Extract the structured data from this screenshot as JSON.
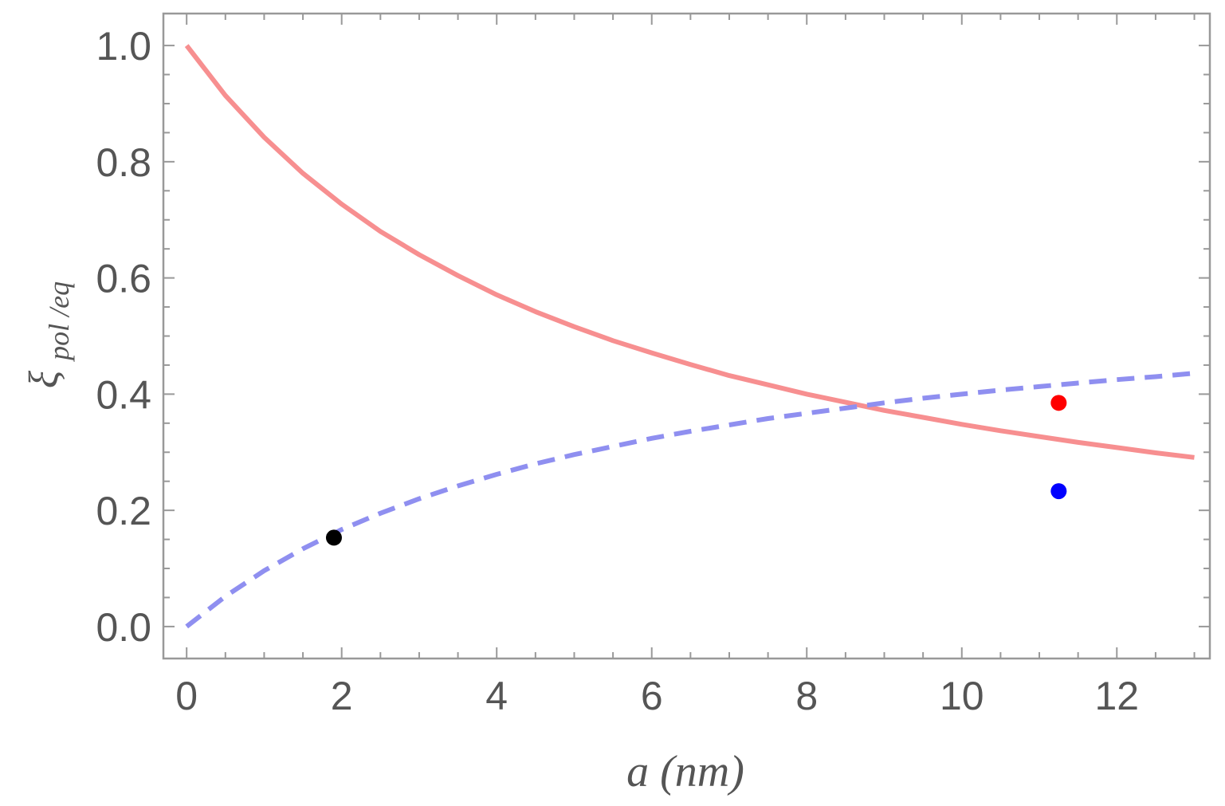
{
  "chart_data": {
    "type": "line",
    "xlabel_var": "a",
    "xlabel_unit": "(nm)",
    "ylabel_var": "ξ",
    "ylabel_sub": "pol /eq",
    "xlim": [
      -0.3,
      13.2
    ],
    "ylim": [
      -0.055,
      1.055
    ],
    "x_ticks": [
      0,
      2,
      4,
      6,
      8,
      10,
      12
    ],
    "x_tick_labels": [
      "0",
      "2",
      "4",
      "6",
      "8",
      "10",
      "12"
    ],
    "y_ticks": [
      0.0,
      0.2,
      0.4,
      0.6,
      0.8,
      1.0
    ],
    "y_tick_labels": [
      "0.0",
      "0.2",
      "0.4",
      "0.6",
      "0.8",
      "1.0"
    ],
    "grid": false,
    "series": [
      {
        "style": "solid",
        "color": "#f78f90",
        "x": [
          0,
          0.5,
          1,
          1.5,
          2,
          2.5,
          3,
          3.5,
          4,
          4.5,
          5,
          5.5,
          6,
          6.5,
          7,
          7.5,
          8,
          8.5,
          9,
          9.5,
          10,
          10.5,
          11,
          11.5,
          12,
          12.5,
          13
        ],
        "y": [
          1.0,
          0.914,
          0.842,
          0.78,
          0.727,
          0.68,
          0.64,
          0.604,
          0.571,
          0.542,
          0.516,
          0.492,
          0.471,
          0.451,
          0.432,
          0.416,
          0.4,
          0.386,
          0.372,
          0.36,
          0.348,
          0.337,
          0.327,
          0.317,
          0.308,
          0.299,
          0.291
        ]
      },
      {
        "style": "dashed",
        "color": "#8f8ff0",
        "x": [
          0,
          0.5,
          1,
          1.5,
          2,
          2.5,
          3,
          3.5,
          4,
          4.5,
          5,
          5.5,
          6,
          6.5,
          7,
          7.5,
          8,
          8.5,
          9,
          9.5,
          10,
          10.5,
          11,
          11.5,
          12,
          12.5,
          13
        ],
        "y": [
          0.0,
          0.052,
          0.096,
          0.134,
          0.167,
          0.195,
          0.22,
          0.242,
          0.262,
          0.28,
          0.296,
          0.31,
          0.324,
          0.336,
          0.347,
          0.358,
          0.367,
          0.376,
          0.385,
          0.393,
          0.4,
          0.407,
          0.413,
          0.419,
          0.425,
          0.43,
          0.436
        ]
      }
    ],
    "points": [
      {
        "x": 1.9,
        "y": 0.153,
        "color": "#000000"
      },
      {
        "x": 11.25,
        "y": 0.385,
        "color": "#ff0000"
      },
      {
        "x": 11.25,
        "y": 0.233,
        "color": "#0000ff"
      }
    ]
  }
}
